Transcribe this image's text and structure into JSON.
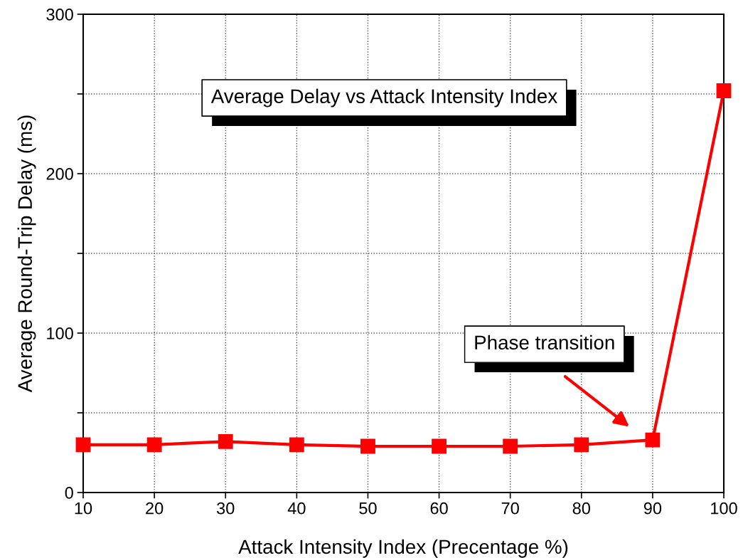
{
  "chart_data": {
    "type": "line",
    "xlabel": "Attack Intensity Index (Precentage %)",
    "ylabel": "Average Round-Trip Delay (ms)",
    "x": [
      10,
      20,
      30,
      40,
      50,
      60,
      70,
      80,
      90,
      100
    ],
    "series": [
      {
        "color": "#ff0000",
        "values": [
          30,
          30,
          32,
          30,
          29,
          29,
          29,
          30,
          33,
          252
        ]
      }
    ],
    "xlim": [
      10,
      100
    ],
    "xticks": [
      10,
      20,
      30,
      40,
      50,
      60,
      70,
      80,
      90,
      100
    ],
    "ylim": [
      0,
      300
    ],
    "yticks": [
      0,
      {
        "value": 50,
        "label": null
      },
      100,
      {
        "value": 150,
        "label": null
      },
      200,
      {
        "value": 250,
        "label": null
      },
      300
    ],
    "grid": true,
    "marker": "square",
    "line_style": "solid",
    "annotations": [
      "Average Delay vs Attack Intensity Index",
      "Phase transition"
    ]
  }
}
